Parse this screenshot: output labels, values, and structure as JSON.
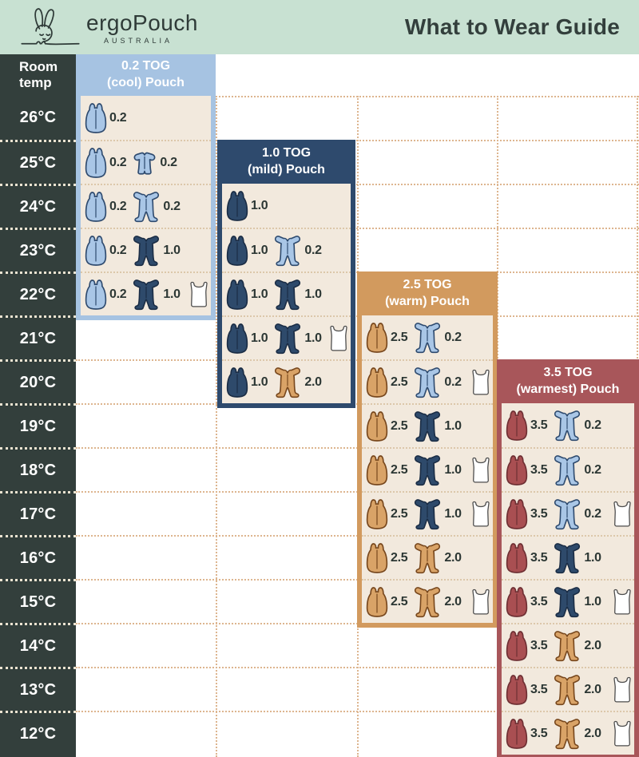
{
  "header": {
    "brand": "ergoPouch",
    "brand_sub": "AUSTRALIA",
    "title": "What to Wear Guide"
  },
  "table": {
    "row_header": "Room temp"
  },
  "colors": {
    "topbar_bg": "#c8e1d2",
    "charcoal": "#333f3c",
    "grid_line": "#ddb58f",
    "panel_body_bg": "#f2e9dd",
    "row_separator": "#dcc7aa",
    "value_text": "#2c3734"
  },
  "palette": {
    "blue": {
      "fill": "#a9c6e6",
      "stroke": "#2e4a6e"
    },
    "navy": {
      "fill": "#2e4a6b",
      "stroke": "#1b2d45"
    },
    "tan": {
      "fill": "#d9a367",
      "stroke": "#77471d"
    },
    "red": {
      "fill": "#a94f52",
      "stroke": "#6e2f33"
    },
    "white": {
      "fill": "#ffffff",
      "stroke": "#4c4c4c"
    }
  },
  "chart_data": {
    "type": "table",
    "title": "What to Wear Guide",
    "row_axis_label": "Room temp",
    "temps": [
      "26°C",
      "25°C",
      "24°C",
      "23°C",
      "22°C",
      "21°C",
      "20°C",
      "19°C",
      "18°C",
      "17°C",
      "16°C",
      "15°C",
      "14°C",
      "13°C",
      "12°C"
    ],
    "panels": [
      {
        "title_line1": "0.2 TOG",
        "title_line2": "(cool) Pouch",
        "color": "#a6c3e2",
        "rows": [
          {
            "temp": "26°C",
            "items": [
              {
                "type": "pouch",
                "color": "blue",
                "tog": "0.2"
              }
            ]
          },
          {
            "temp": "25°C",
            "items": [
              {
                "type": "pouch",
                "color": "blue",
                "tog": "0.2"
              },
              {
                "type": "romper",
                "color": "blue",
                "tog": "0.2"
              }
            ]
          },
          {
            "temp": "24°C",
            "items": [
              {
                "type": "pouch",
                "color": "blue",
                "tog": "0.2"
              },
              {
                "type": "suit",
                "color": "blue",
                "tog": "0.2"
              }
            ]
          },
          {
            "temp": "23°C",
            "items": [
              {
                "type": "pouch",
                "color": "blue",
                "tog": "0.2"
              },
              {
                "type": "suit",
                "color": "navy",
                "tog": "1.0"
              }
            ]
          },
          {
            "temp": "22°C",
            "items": [
              {
                "type": "pouch",
                "color": "blue",
                "tog": "0.2"
              },
              {
                "type": "suit",
                "color": "navy",
                "tog": "1.0"
              },
              {
                "type": "singlet",
                "color": "white"
              }
            ]
          }
        ]
      },
      {
        "title_line1": "1.0 TOG",
        "title_line2": "(mild) Pouch",
        "color": "#2e4a6d",
        "rows": [
          {
            "temp": "24°C",
            "items": [
              {
                "type": "pouch",
                "color": "navy",
                "tog": "1.0"
              }
            ]
          },
          {
            "temp": "23°C",
            "items": [
              {
                "type": "pouch",
                "color": "navy",
                "tog": "1.0"
              },
              {
                "type": "suit",
                "color": "blue",
                "tog": "0.2"
              }
            ]
          },
          {
            "temp": "22°C",
            "items": [
              {
                "type": "pouch",
                "color": "navy",
                "tog": "1.0"
              },
              {
                "type": "suit",
                "color": "navy",
                "tog": "1.0"
              }
            ]
          },
          {
            "temp": "21°C",
            "items": [
              {
                "type": "pouch",
                "color": "navy",
                "tog": "1.0"
              },
              {
                "type": "suit",
                "color": "navy",
                "tog": "1.0"
              },
              {
                "type": "singlet",
                "color": "white"
              }
            ]
          },
          {
            "temp": "20°C",
            "items": [
              {
                "type": "pouch",
                "color": "navy",
                "tog": "1.0"
              },
              {
                "type": "suit",
                "color": "tan",
                "tog": "2.0"
              }
            ]
          }
        ]
      },
      {
        "title_line1": "2.5 TOG",
        "title_line2": "(warm) Pouch",
        "color": "#d29a5e",
        "rows": [
          {
            "temp": "21°C",
            "items": [
              {
                "type": "pouch",
                "color": "tan",
                "tog": "2.5"
              },
              {
                "type": "suit",
                "color": "blue",
                "tog": "0.2"
              }
            ]
          },
          {
            "temp": "20°C",
            "items": [
              {
                "type": "pouch",
                "color": "tan",
                "tog": "2.5"
              },
              {
                "type": "suit",
                "color": "blue",
                "tog": "0.2"
              },
              {
                "type": "singlet",
                "color": "white"
              }
            ]
          },
          {
            "temp": "19°C",
            "items": [
              {
                "type": "pouch",
                "color": "tan",
                "tog": "2.5"
              },
              {
                "type": "suit",
                "color": "navy",
                "tog": "1.0"
              }
            ]
          },
          {
            "temp": "18°C",
            "items": [
              {
                "type": "pouch",
                "color": "tan",
                "tog": "2.5"
              },
              {
                "type": "suit",
                "color": "navy",
                "tog": "1.0"
              },
              {
                "type": "singlet",
                "color": "white"
              }
            ]
          },
          {
            "temp": "17°C",
            "items": [
              {
                "type": "pouch",
                "color": "tan",
                "tog": "2.5"
              },
              {
                "type": "suit",
                "color": "navy",
                "tog": "1.0"
              },
              {
                "type": "singlet",
                "color": "white"
              }
            ]
          },
          {
            "temp": "16°C",
            "items": [
              {
                "type": "pouch",
                "color": "tan",
                "tog": "2.5"
              },
              {
                "type": "suit",
                "color": "tan",
                "tog": "2.0"
              }
            ]
          },
          {
            "temp": "15°C",
            "items": [
              {
                "type": "pouch",
                "color": "tan",
                "tog": "2.5"
              },
              {
                "type": "suit",
                "color": "tan",
                "tog": "2.0"
              },
              {
                "type": "singlet",
                "color": "white"
              }
            ]
          }
        ]
      },
      {
        "title_line1": "3.5 TOG",
        "title_line2": "(warmest) Pouch",
        "color": "#a8565a",
        "rows": [
          {
            "temp": "19°C",
            "items": [
              {
                "type": "pouch",
                "color": "red",
                "tog": "3.5"
              },
              {
                "type": "suit",
                "color": "blue",
                "tog": "0.2"
              }
            ]
          },
          {
            "temp": "18°C",
            "items": [
              {
                "type": "pouch",
                "color": "red",
                "tog": "3.5"
              },
              {
                "type": "suit",
                "color": "blue",
                "tog": "0.2"
              }
            ]
          },
          {
            "temp": "17°C",
            "items": [
              {
                "type": "pouch",
                "color": "red",
                "tog": "3.5"
              },
              {
                "type": "suit",
                "color": "blue",
                "tog": "0.2"
              },
              {
                "type": "singlet",
                "color": "white"
              }
            ]
          },
          {
            "temp": "16°C",
            "items": [
              {
                "type": "pouch",
                "color": "red",
                "tog": "3.5"
              },
              {
                "type": "suit",
                "color": "navy",
                "tog": "1.0"
              }
            ]
          },
          {
            "temp": "15°C",
            "items": [
              {
                "type": "pouch",
                "color": "red",
                "tog": "3.5"
              },
              {
                "type": "suit",
                "color": "navy",
                "tog": "1.0"
              },
              {
                "type": "singlet",
                "color": "white"
              }
            ]
          },
          {
            "temp": "14°C",
            "items": [
              {
                "type": "pouch",
                "color": "red",
                "tog": "3.5"
              },
              {
                "type": "suit",
                "color": "tan",
                "tog": "2.0"
              }
            ]
          },
          {
            "temp": "13°C",
            "items": [
              {
                "type": "pouch",
                "color": "red",
                "tog": "3.5"
              },
              {
                "type": "suit",
                "color": "tan",
                "tog": "2.0"
              },
              {
                "type": "singlet",
                "color": "white"
              }
            ]
          },
          {
            "temp": "12°C",
            "items": [
              {
                "type": "pouch",
                "color": "red",
                "tog": "3.5"
              },
              {
                "type": "suit",
                "color": "tan",
                "tog": "2.0"
              },
              {
                "type": "singlet",
                "color": "white"
              }
            ]
          }
        ]
      }
    ]
  }
}
